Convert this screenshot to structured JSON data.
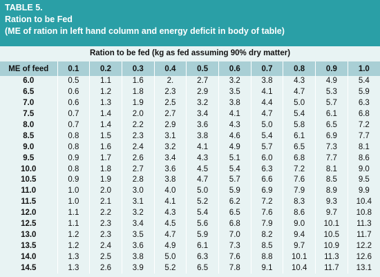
{
  "table": {
    "title_line1": "TABLE 5.",
    "title_line2": "Ration to be Fed",
    "title_line3": "(ME of ration in left hand column and energy deficit in body of table)",
    "subheading": "Ration to be fed (kg as fed assuming 90% dry matter)",
    "first_header": "ME of feed",
    "deficit_headers": [
      "0.1",
      "0.2",
      "0.3",
      "0.4",
      "0.5",
      "0.6",
      "0.7",
      "0.8",
      "0.9",
      "1.0"
    ],
    "rows": [
      [
        "6.0",
        "0.5",
        "1.1",
        "1.6",
        "2.",
        "2.7",
        "3.2",
        "3.8",
        "4.3",
        "4.9",
        "5.4"
      ],
      [
        "6.5",
        "0.6",
        "1.2",
        "1.8",
        "2.3",
        "2.9",
        "3.5",
        "4.1",
        "4.7",
        "5.3",
        "5.9"
      ],
      [
        "7.0",
        "0.6",
        "1.3",
        "1.9",
        "2.5",
        "3.2",
        "3.8",
        "4.4",
        "5.0",
        "5.7",
        "6.3"
      ],
      [
        "7.5",
        "0.7",
        "1.4",
        "2.0",
        "2.7",
        "3.4",
        "4.1",
        "4.7",
        "5.4",
        "6.1",
        "6.8"
      ],
      [
        "8.0",
        "0.7",
        "1.4",
        "2.2",
        "2.9",
        "3.6",
        "4.3",
        "5.0",
        "5.8",
        "6.5",
        "7.2"
      ],
      [
        "8.5",
        "0.8",
        "1.5",
        "2.3",
        "3.1",
        "3.8",
        "4.6",
        "5.4",
        "6.1",
        "6.9",
        "7.7"
      ],
      [
        "9.0",
        "0.8",
        "1.6",
        "2.4",
        "3.2",
        "4.1",
        "4.9",
        "5.7",
        "6.5",
        "7.3",
        "8.1"
      ],
      [
        "9.5",
        "0.9",
        "1.7",
        "2.6",
        "3.4",
        "4.3",
        "5.1",
        "6.0",
        "6.8",
        "7.7",
        "8.6"
      ],
      [
        "10.0",
        "0.8",
        "1.8",
        "2.7",
        "3.6",
        "4.5",
        "5.4",
        "6.3",
        "7.2",
        "8.1",
        "9.0"
      ],
      [
        "10.5",
        "0.9",
        "1.9",
        "2.8",
        "3.8",
        "4.7",
        "5.7",
        "6.6",
        "7.6",
        "8.5",
        "9.5"
      ],
      [
        "11.0",
        "1.0",
        "2.0",
        "3.0",
        "4.0",
        "5.0",
        "5.9",
        "6.9",
        "7.9",
        "8.9",
        "9.9"
      ],
      [
        "11.5",
        "1.0",
        "2.1",
        "3.1",
        "4.1",
        "5.2",
        "6.2",
        "7.2",
        "8.3",
        "9.3",
        "10.4"
      ],
      [
        "12.0",
        "1.1",
        "2.2",
        "3.2",
        "4.3",
        "5.4",
        "6.5",
        "7.6",
        "8.6",
        "9.7",
        "10.8"
      ],
      [
        "12.5",
        "1.1",
        "2.3",
        "3.4",
        "4.5",
        "5.6",
        "6.8",
        "7.9",
        "9.0",
        "10.1",
        "11.3"
      ],
      [
        "13.0",
        "1.2",
        "2.3",
        "3.5",
        "4.7",
        "5.9",
        "7.0",
        "8.2",
        "9.4",
        "10.5",
        "11.7"
      ],
      [
        "13.5",
        "1.2",
        "2.4",
        "3.6",
        "4.9",
        "6.1",
        "7.3",
        "8.5",
        "9.7",
        "10.9",
        "12.2"
      ],
      [
        "14.0",
        "1.3",
        "2.5",
        "3.8",
        "5.0",
        "6.3",
        "7.6",
        "8.8",
        "10.1",
        "11.3",
        "12.6"
      ],
      [
        "14.5",
        "1.3",
        "2.6",
        "3.9",
        "5.2",
        "6.5",
        "7.8",
        "9.1",
        "10.4",
        "11.7",
        "13.1"
      ]
    ]
  },
  "colors": {
    "title_bg": "#2a9fa6",
    "header_bg": "#a9cfd5",
    "body_bg": "#e8f3f3"
  }
}
